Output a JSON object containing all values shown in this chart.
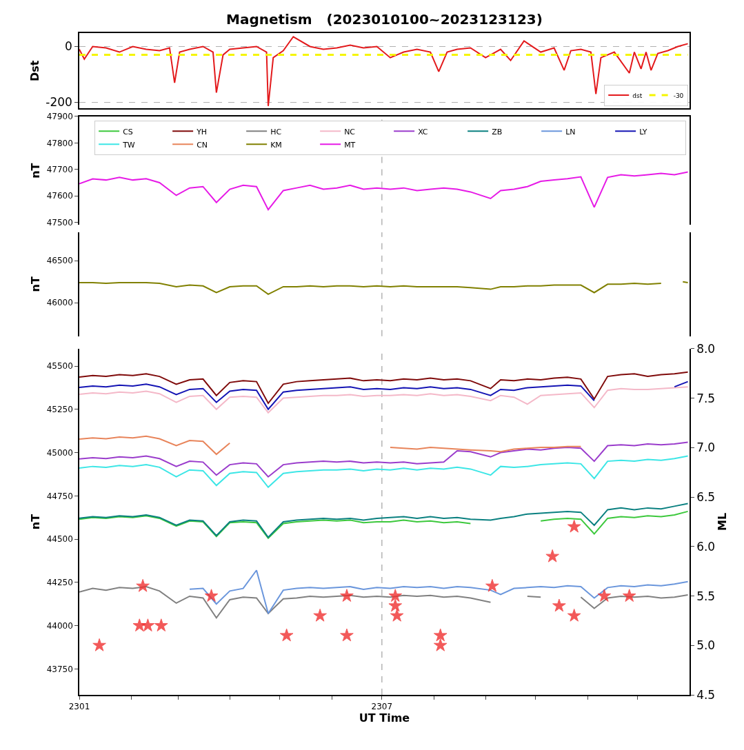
{
  "chart_data": [
    {
      "type": "line",
      "title": "Magnetism   (2023010100~2023123123)",
      "ylabel": "Dst",
      "xlim": [
        "2023-01-01",
        "2024-01-01"
      ],
      "ylim": [
        -222,
        48
      ],
      "yticks": [
        -200,
        0
      ],
      "grid": "y",
      "legend": "bottom right",
      "tick_labels": "y",
      "series": [
        {
          "name": "dst",
          "color": "#e31a1c",
          "x": [
            "2023-01-01",
            "2023-01-04",
            "2023-01-09",
            "2023-01-17",
            "2023-01-25",
            "2023-02-02",
            "2023-02-10",
            "2023-02-18",
            "2023-02-24",
            "2023-02-27",
            "2023-03-02",
            "2023-03-08",
            "2023-03-16",
            "2023-03-22",
            "2023-03-24",
            "2023-03-28",
            "2023-04-01",
            "2023-04-09",
            "2023-04-17",
            "2023-04-23",
            "2023-04-24",
            "2023-04-27",
            "2023-05-03",
            "2023-05-09",
            "2023-05-19",
            "2023-05-27",
            "2023-06-04",
            "2023-06-12",
            "2023-06-20",
            "2023-06-28",
            "2023-07-06",
            "2023-07-14",
            "2023-07-22",
            "2023-07-30",
            "2023-08-04",
            "2023-08-09",
            "2023-08-15",
            "2023-08-23",
            "2023-09-01",
            "2023-09-10",
            "2023-09-16",
            "2023-09-24",
            "2023-10-04",
            "2023-10-12",
            "2023-10-18",
            "2023-10-22",
            "2023-10-28",
            "2023-11-03",
            "2023-11-06",
            "2023-11-09",
            "2023-11-17",
            "2023-11-26",
            "2023-11-29",
            "2023-12-03",
            "2023-12-06",
            "2023-12-09",
            "2023-12-13",
            "2023-12-19",
            "2023-12-25",
            "2023-12-31"
          ],
          "values": [
            -10,
            -45,
            0,
            -5,
            -20,
            0,
            -10,
            -15,
            -5,
            -130,
            -20,
            -10,
            0,
            -20,
            -165,
            -30,
            -10,
            -5,
            0,
            -20,
            -213,
            -40,
            -15,
            35,
            0,
            -10,
            -5,
            5,
            -5,
            0,
            -40,
            -20,
            -10,
            -20,
            -90,
            -20,
            -10,
            -5,
            -40,
            -10,
            -50,
            20,
            -20,
            -5,
            -85,
            -15,
            -10,
            -20,
            -170,
            -40,
            -20,
            -95,
            -20,
            -80,
            -20,
            -85,
            -25,
            -15,
            0,
            10
          ]
        },
        {
          "name": "-30",
          "color": "#f5f500",
          "line_style": "dashed",
          "x": [
            "2023-01-01",
            "2023-12-31"
          ],
          "values": [
            -30,
            -30
          ]
        }
      ]
    },
    {
      "type": "line",
      "ylabel": "nT",
      "xlim": [
        "2023-01-01",
        "2024-01-01"
      ],
      "ylim": [
        47490,
        47900
      ],
      "yticks": [
        47500,
        47600,
        47700,
        47800,
        47900
      ],
      "legend": "top",
      "tick_labels": "y",
      "ref_lines": [
        {
          "axis": "x",
          "value": "2023-07-01",
          "color": "#a0a0a0",
          "line_style": "dashed"
        }
      ],
      "x": [
        "2023-01-01",
        "2023-01-09",
        "2023-01-17",
        "2023-01-25",
        "2023-02-02",
        "2023-02-10",
        "2023-02-18",
        "2023-02-28",
        "2023-03-08",
        "2023-03-16",
        "2023-03-24",
        "2023-04-01",
        "2023-04-09",
        "2023-04-17",
        "2023-04-24",
        "2023-05-03",
        "2023-05-11",
        "2023-05-19",
        "2023-05-27",
        "2023-06-04",
        "2023-06-12",
        "2023-06-20",
        "2023-06-28",
        "2023-07-06",
        "2023-07-14",
        "2023-07-22",
        "2023-07-30",
        "2023-08-07",
        "2023-08-15",
        "2023-08-23",
        "2023-09-04",
        "2023-09-10",
        "2023-09-18",
        "2023-09-26",
        "2023-10-04",
        "2023-10-12",
        "2023-10-20",
        "2023-10-28",
        "2023-11-05",
        "2023-11-13",
        "2023-11-21",
        "2023-11-29",
        "2023-12-07",
        "2023-12-15",
        "2023-12-23",
        "2023-12-31"
      ],
      "series": [
        {
          "name": "MT",
          "color": "#e61ae6",
          "values": [
            47646,
            47664,
            47660,
            47670,
            47660,
            47665,
            47650,
            47602,
            47630,
            47635,
            47575,
            47625,
            47640,
            47635,
            47548,
            47620,
            47630,
            47640,
            47625,
            47630,
            47640,
            47625,
            47630,
            47625,
            47630,
            47620,
            47625,
            47630,
            47625,
            47615,
            47590,
            47620,
            47625,
            47635,
            47655,
            47660,
            47665,
            47672,
            47557,
            47670,
            47680,
            47675,
            47680,
            47685,
            47680,
            47690
          ]
        }
      ]
    },
    {
      "type": "line",
      "ylabel": "nT",
      "xlim": [
        "2023-01-01",
        "2024-01-01"
      ],
      "ylim": [
        45600,
        46840
      ],
      "yticks": [
        46000,
        46500
      ],
      "legend": "top",
      "tick_labels": "y",
      "ref_lines": [
        {
          "axis": "x",
          "value": "2023-07-01",
          "color": "#a0a0a0",
          "line_style": "dashed"
        }
      ],
      "series": [
        {
          "name": "KM",
          "color": "#808000",
          "x": [
            "2023-01-01",
            "2023-01-09",
            "2023-01-17",
            "2023-01-25",
            "2023-02-02",
            "2023-02-10",
            "2023-02-18",
            "2023-02-28",
            "2023-03-08",
            "2023-03-16",
            "2023-03-24",
            "2023-04-01",
            "2023-04-09",
            "2023-04-17",
            "2023-04-24",
            "2023-05-03",
            "2023-05-11",
            "2023-05-19",
            "2023-05-27",
            "2023-06-04",
            "2023-06-12",
            "2023-06-20",
            "2023-06-28",
            "2023-07-06",
            "2023-07-14",
            "2023-07-22",
            "2023-07-30",
            "2023-08-07",
            "2023-08-15",
            "2023-08-23",
            "2023-09-04",
            "2023-09-10",
            "2023-09-18",
            "2023-09-26",
            "2023-10-04",
            "2023-10-12",
            "2023-10-20",
            "2023-10-28",
            "2023-11-05",
            "2023-11-13",
            "2023-11-21",
            "2023-11-29",
            "2023-12-07",
            "2023-12-15",
            "2023-12-23",
            "2023-12-28",
            "2023-12-31"
          ],
          "values": [
            46240,
            46240,
            46230,
            46240,
            46240,
            46240,
            46230,
            46190,
            46210,
            46200,
            46120,
            46190,
            46200,
            46200,
            46100,
            46190,
            46190,
            46200,
            46190,
            46200,
            46200,
            46190,
            46200,
            46190,
            46200,
            46190,
            46190,
            46190,
            46190,
            46180,
            46160,
            46190,
            46190,
            46200,
            46200,
            46210,
            46210,
            46210,
            46120,
            46220,
            46220,
            46230,
            46220,
            46230,
            null,
            46250,
            46240
          ]
        }
      ]
    },
    {
      "type": "line",
      "xlabel": "UT Time",
      "ylabel": "nT",
      "y2label": "ML",
      "xlim": [
        "2023-01-01",
        "2024-01-01"
      ],
      "ylim": [
        43600,
        45600
      ],
      "yticks": [
        43750,
        44000,
        44250,
        44500,
        44750,
        45000,
        45250,
        45500
      ],
      "y2lim": [
        4.5,
        8.0
      ],
      "y2ticks": [
        4.5,
        {
          "value": 5,
          "label": "5.0"
        },
        5.5,
        {
          "value": 6,
          "label": "6.0"
        },
        6.5,
        {
          "value": 7,
          "label": "7.0"
        },
        7.5,
        {
          "value": 8,
          "label": "8.0"
        }
      ],
      "legend": "top",
      "xticks": [
        {
          "value": "2023-01-01",
          "label": "2301"
        },
        {
          "value": "2023-02-01",
          "label": null
        },
        {
          "value": "2023-03-01",
          "label": null
        },
        {
          "value": "2023-04-01",
          "label": null
        },
        {
          "value": "2023-05-01",
          "label": null
        },
        {
          "value": "2023-06-01",
          "label": null
        },
        {
          "value": "2023-07-01",
          "label": "2307"
        },
        {
          "value": "2023-08-01",
          "label": null
        },
        {
          "value": "2023-09-01",
          "label": null
        },
        {
          "value": "2023-10-01",
          "label": null
        },
        {
          "value": "2023-11-01",
          "label": null
        },
        {
          "value": "2023-12-01",
          "label": null
        }
      ],
      "ref_lines": [
        {
          "axis": "x",
          "value": "2023-07-01",
          "color": "#a0a0a0",
          "line_style": "dashed"
        }
      ],
      "x": [
        "2023-01-01",
        "2023-01-09",
        "2023-01-17",
        "2023-01-25",
        "2023-02-02",
        "2023-02-10",
        "2023-02-18",
        "2023-02-28",
        "2023-03-08",
        "2023-03-16",
        "2023-03-24",
        "2023-04-01",
        "2023-04-09",
        "2023-04-17",
        "2023-04-24",
        "2023-05-03",
        "2023-05-11",
        "2023-05-19",
        "2023-05-27",
        "2023-06-04",
        "2023-06-12",
        "2023-06-20",
        "2023-06-28",
        "2023-07-06",
        "2023-07-14",
        "2023-07-22",
        "2023-07-30",
        "2023-08-07",
        "2023-08-15",
        "2023-08-23",
        "2023-09-04",
        "2023-09-10",
        "2023-09-18",
        "2023-09-26",
        "2023-10-04",
        "2023-10-12",
        "2023-10-20",
        "2023-10-28",
        "2023-11-05",
        "2023-11-13",
        "2023-11-21",
        "2023-11-29",
        "2023-12-07",
        "2023-12-15",
        "2023-12-23",
        "2023-12-31"
      ],
      "series": [
        {
          "name": "CS",
          "color": "#3cc83c",
          "values": [
            44615,
            44625,
            44620,
            44630,
            44625,
            44635,
            44620,
            44575,
            44605,
            44600,
            44515,
            44595,
            44600,
            44595,
            44505,
            44590,
            44600,
            44605,
            44610,
            44605,
            44610,
            44595,
            44600,
            44600,
            44610,
            44600,
            44605,
            44595,
            44600,
            44590,
            null,
            null,
            null,
            null,
            44605,
            44615,
            44620,
            44615,
            44530,
            44620,
            44630,
            44625,
            44635,
            44630,
            44640,
            44660
          ]
        },
        {
          "name": "YH",
          "color": "#7f0a0a",
          "values": [
            45436,
            45445,
            45440,
            45450,
            45445,
            45455,
            45440,
            45395,
            45420,
            45425,
            45330,
            45405,
            45415,
            45410,
            45285,
            45395,
            45410,
            45415,
            45420,
            45425,
            45430,
            45415,
            45420,
            45415,
            45425,
            45420,
            45430,
            45420,
            45425,
            45415,
            45370,
            45420,
            45415,
            45425,
            45420,
            45430,
            45435,
            45425,
            45310,
            45440,
            45450,
            45455,
            45440,
            45450,
            45455,
            45465
          ]
        },
        {
          "name": "HC",
          "color": "#808080",
          "values": [
            44194,
            44215,
            44205,
            44220,
            44215,
            44225,
            44200,
            44130,
            44170,
            44160,
            44045,
            44150,
            44165,
            44160,
            44070,
            44155,
            44160,
            44170,
            44165,
            44170,
            44175,
            44165,
            44170,
            44165,
            44175,
            44170,
            44175,
            44165,
            44170,
            44160,
            44135,
            null,
            null,
            44170,
            44165,
            null,
            null,
            44165,
            44100,
            44160,
            44170,
            44165,
            44170,
            44160,
            44165,
            44178
          ]
        },
        {
          "name": "NC",
          "color": "#f4b8c8",
          "values": [
            45337,
            45345,
            45340,
            45350,
            45345,
            45355,
            45340,
            45290,
            45325,
            45330,
            45250,
            45320,
            45325,
            45320,
            45230,
            45315,
            45320,
            45325,
            45330,
            45330,
            45335,
            45325,
            45330,
            45330,
            45335,
            45330,
            45340,
            45330,
            45335,
            45325,
            45300,
            45330,
            45320,
            45280,
            45330,
            45335,
            45340,
            45345,
            45260,
            45360,
            45370,
            45365,
            45365,
            45370,
            45375,
            45380
          ]
        },
        {
          "name": "XC",
          "color": "#9a3ccc",
          "values": [
            44963,
            44970,
            44965,
            44975,
            44970,
            44980,
            44965,
            44920,
            44950,
            44945,
            44870,
            44930,
            44940,
            44935,
            44860,
            44930,
            44940,
            44945,
            44950,
            44945,
            44950,
            44940,
            44945,
            44940,
            44945,
            44935,
            44940,
            44945,
            45010,
            45005,
            44975,
            45000,
            45010,
            45020,
            45015,
            45025,
            45030,
            45025,
            44950,
            45040,
            45045,
            45040,
            45050,
            45045,
            45050,
            45060
          ]
        },
        {
          "name": "ZB",
          "color": "#0a8080",
          "values": [
            44621,
            44630,
            44625,
            44635,
            44630,
            44640,
            44625,
            44580,
            44610,
            44605,
            44520,
            44600,
            44610,
            44605,
            44510,
            44600,
            44610,
            44615,
            44620,
            44615,
            44620,
            44610,
            44620,
            44625,
            44630,
            44620,
            44630,
            44620,
            44625,
            44615,
            44610,
            44620,
            44630,
            44645,
            44650,
            44655,
            44660,
            44655,
            44580,
            44670,
            44680,
            44670,
            44680,
            44675,
            44690,
            44705
          ]
        },
        {
          "name": "LN",
          "color": "#6a96dc",
          "values": [
            null,
            null,
            null,
            null,
            null,
            null,
            null,
            null,
            44210,
            44215,
            44125,
            44200,
            44215,
            44320,
            44070,
            44205,
            44215,
            44220,
            44215,
            44220,
            44225,
            44210,
            44220,
            44215,
            44225,
            44220,
            44225,
            44215,
            44225,
            44220,
            44205,
            44180,
            44215,
            44220,
            44225,
            44220,
            44230,
            44225,
            44160,
            44220,
            44230,
            44225,
            44235,
            44230,
            44240,
            44254
          ]
        },
        {
          "name": "LY",
          "color": "#1414b4",
          "values": [
            45377,
            45385,
            45380,
            45390,
            45385,
            45395,
            45380,
            45335,
            45365,
            45370,
            45290,
            45355,
            45365,
            45360,
            45250,
            45350,
            45360,
            45365,
            45370,
            45375,
            45380,
            45365,
            45370,
            45365,
            45375,
            45370,
            45380,
            45370,
            45375,
            45365,
            45330,
            45365,
            45360,
            45375,
            45380,
            45385,
            45390,
            45385,
            45300,
            null,
            null,
            null,
            null,
            null,
            45380,
            45410
          ]
        },
        {
          "name": "TW",
          "color": "#3ce6e6",
          "values": [
            44911,
            44920,
            44915,
            44925,
            44920,
            44930,
            44915,
            44860,
            44900,
            44895,
            44810,
            44880,
            44890,
            44885,
            44800,
            44880,
            44890,
            44895,
            44900,
            44900,
            44905,
            44895,
            44905,
            44900,
            44910,
            44900,
            44910,
            44905,
            44915,
            44905,
            44870,
            44920,
            44915,
            44920,
            44930,
            44935,
            44940,
            44935,
            44850,
            44950,
            44955,
            44950,
            44960,
            44955,
            44965,
            44980
          ]
        },
        {
          "name": "CN",
          "color": "#e8845a",
          "values": [
            45078,
            45085,
            45080,
            45090,
            45085,
            45095,
            45080,
            45040,
            45070,
            45065,
            44990,
            45055,
            null,
            null,
            null,
            null,
            null,
            null,
            null,
            null,
            null,
            null,
            null,
            45030,
            45025,
            45020,
            45030,
            45025,
            45020,
            45015,
            45010,
            45005,
            45020,
            45025,
            45030,
            45030,
            45035,
            45035,
            null,
            null,
            null,
            null,
            null,
            null,
            null,
            null
          ]
        },
        {
          "type": "scatter",
          "axis": "y2",
          "marker": "star",
          "color": "#f03030",
          "x": [
            "2023-01-13",
            "2023-02-06",
            "2023-02-08",
            "2023-02-11",
            "2023-02-19",
            "2023-03-21",
            "2023-05-05",
            "2023-05-25",
            "2023-06-10",
            "2023-06-10",
            "2023-07-09",
            "2023-07-09",
            "2023-07-10",
            "2023-08-05",
            "2023-08-05",
            "2023-09-05",
            "2023-10-11",
            "2023-10-15",
            "2023-10-24",
            "2023-10-24",
            "2023-11-11",
            "2023-11-26"
          ],
          "values": [
            5.0,
            5.2,
            5.6,
            5.2,
            5.2,
            5.5,
            5.1,
            5.3,
            5.5,
            5.1,
            5.5,
            5.4,
            5.3,
            5.1,
            5.0,
            5.6,
            5.9,
            5.4,
            5.3,
            6.2,
            5.5,
            5.5
          ]
        }
      ]
    }
  ]
}
